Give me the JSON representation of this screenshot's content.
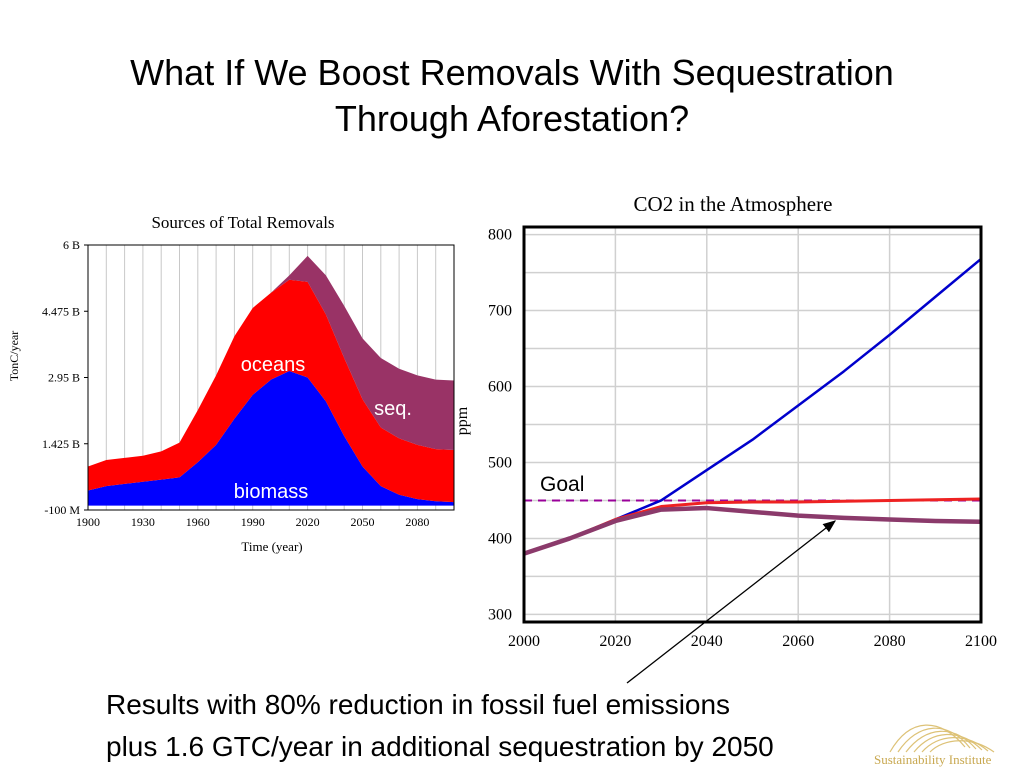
{
  "slide": {
    "title_line1": "What If We Boost Removals With Sequestration",
    "title_line2": "Through Aforestation?",
    "caption_line1": "Results with 80% reduction in fossil fuel emissions",
    "caption_line2": "plus 1.6 GTC/year in additional sequestration by 2050",
    "logo_text": "Sustainability Institute"
  },
  "colors": {
    "biomass": "#0000ff",
    "oceans": "#ff0000",
    "seq": "#993366",
    "co2_baseline": "#0000cc",
    "co2_red": "#ee2222",
    "co2_purple": "#8b3a6b",
    "goal_line": "#990099",
    "logo": "#d8b860"
  },
  "chart_data": [
    {
      "type": "area",
      "title": "Sources of Total Removals",
      "xlabel": "Time (year)",
      "ylabel": "TonC/year",
      "xlim": [
        1900,
        2100
      ],
      "ylim": [
        -100000000,
        6000000000
      ],
      "x_ticks": [
        1900,
        1930,
        1960,
        1990,
        2020,
        2050,
        2080
      ],
      "y_ticks": [
        {
          "value": 6000000000,
          "label": "6 B"
        },
        {
          "value": 4475000000,
          "label": "4.475 B"
        },
        {
          "value": 2950000000,
          "label": "2.95 B"
        },
        {
          "value": 1425000000,
          "label": "1.425 B"
        },
        {
          "value": -100000000,
          "label": "-100 M"
        }
      ],
      "grid": true,
      "stacked": true,
      "x": [
        1900,
        1910,
        1920,
        1930,
        1940,
        1950,
        1960,
        1970,
        1980,
        1990,
        2000,
        2010,
        2020,
        2030,
        2040,
        2050,
        2060,
        2070,
        2080,
        2090,
        2100
      ],
      "series": [
        {
          "name": "biomass",
          "values": [
            0.35,
            0.45,
            0.5,
            0.55,
            0.6,
            0.65,
            1.0,
            1.4,
            2.0,
            2.55,
            2.9,
            3.1,
            2.95,
            2.4,
            1.6,
            0.9,
            0.45,
            0.25,
            0.15,
            0.1,
            0.08
          ]
        },
        {
          "name": "oceans",
          "values": [
            0.55,
            0.6,
            0.6,
            0.6,
            0.65,
            0.8,
            1.2,
            1.6,
            1.9,
            2.0,
            2.0,
            2.1,
            2.2,
            2.0,
            1.8,
            1.55,
            1.35,
            1.3,
            1.25,
            1.2,
            1.2
          ]
        },
        {
          "name": "seq.",
          "values": [
            0,
            0,
            0,
            0,
            0,
            0,
            0,
            0,
            0,
            0,
            0,
            0.1,
            0.6,
            0.9,
            1.2,
            1.4,
            1.6,
            1.6,
            1.6,
            1.6,
            1.6
          ]
        }
      ],
      "series_units": "B TonC/year",
      "area_labels": [
        "oceans",
        "seq.",
        "biomass"
      ]
    },
    {
      "type": "line",
      "title": "CO2 in the Atmosphere",
      "xlabel": "",
      "ylabel": "ppm",
      "xlim": [
        2000,
        2100
      ],
      "ylim": [
        290,
        810
      ],
      "x_ticks": [
        2000,
        2020,
        2040,
        2060,
        2080,
        2100
      ],
      "y_ticks": [
        300,
        400,
        500,
        600,
        700,
        800
      ],
      "grid": true,
      "x": [
        2000,
        2010,
        2020,
        2030,
        2040,
        2050,
        2060,
        2070,
        2080,
        2090,
        2100
      ],
      "series": [
        {
          "values": [
            380,
            400,
            425,
            450,
            490,
            530,
            575,
            620,
            668,
            718,
            768
          ]
        },
        {
          "values": [
            380,
            400,
            425,
            442,
            447,
            448,
            448,
            449,
            450,
            451,
            452
          ]
        },
        {
          "values": [
            380,
            400,
            423,
            438,
            440,
            435,
            430,
            427,
            425,
            423,
            422
          ]
        }
      ],
      "goal": {
        "value": 450,
        "label": "Goal"
      }
    }
  ]
}
